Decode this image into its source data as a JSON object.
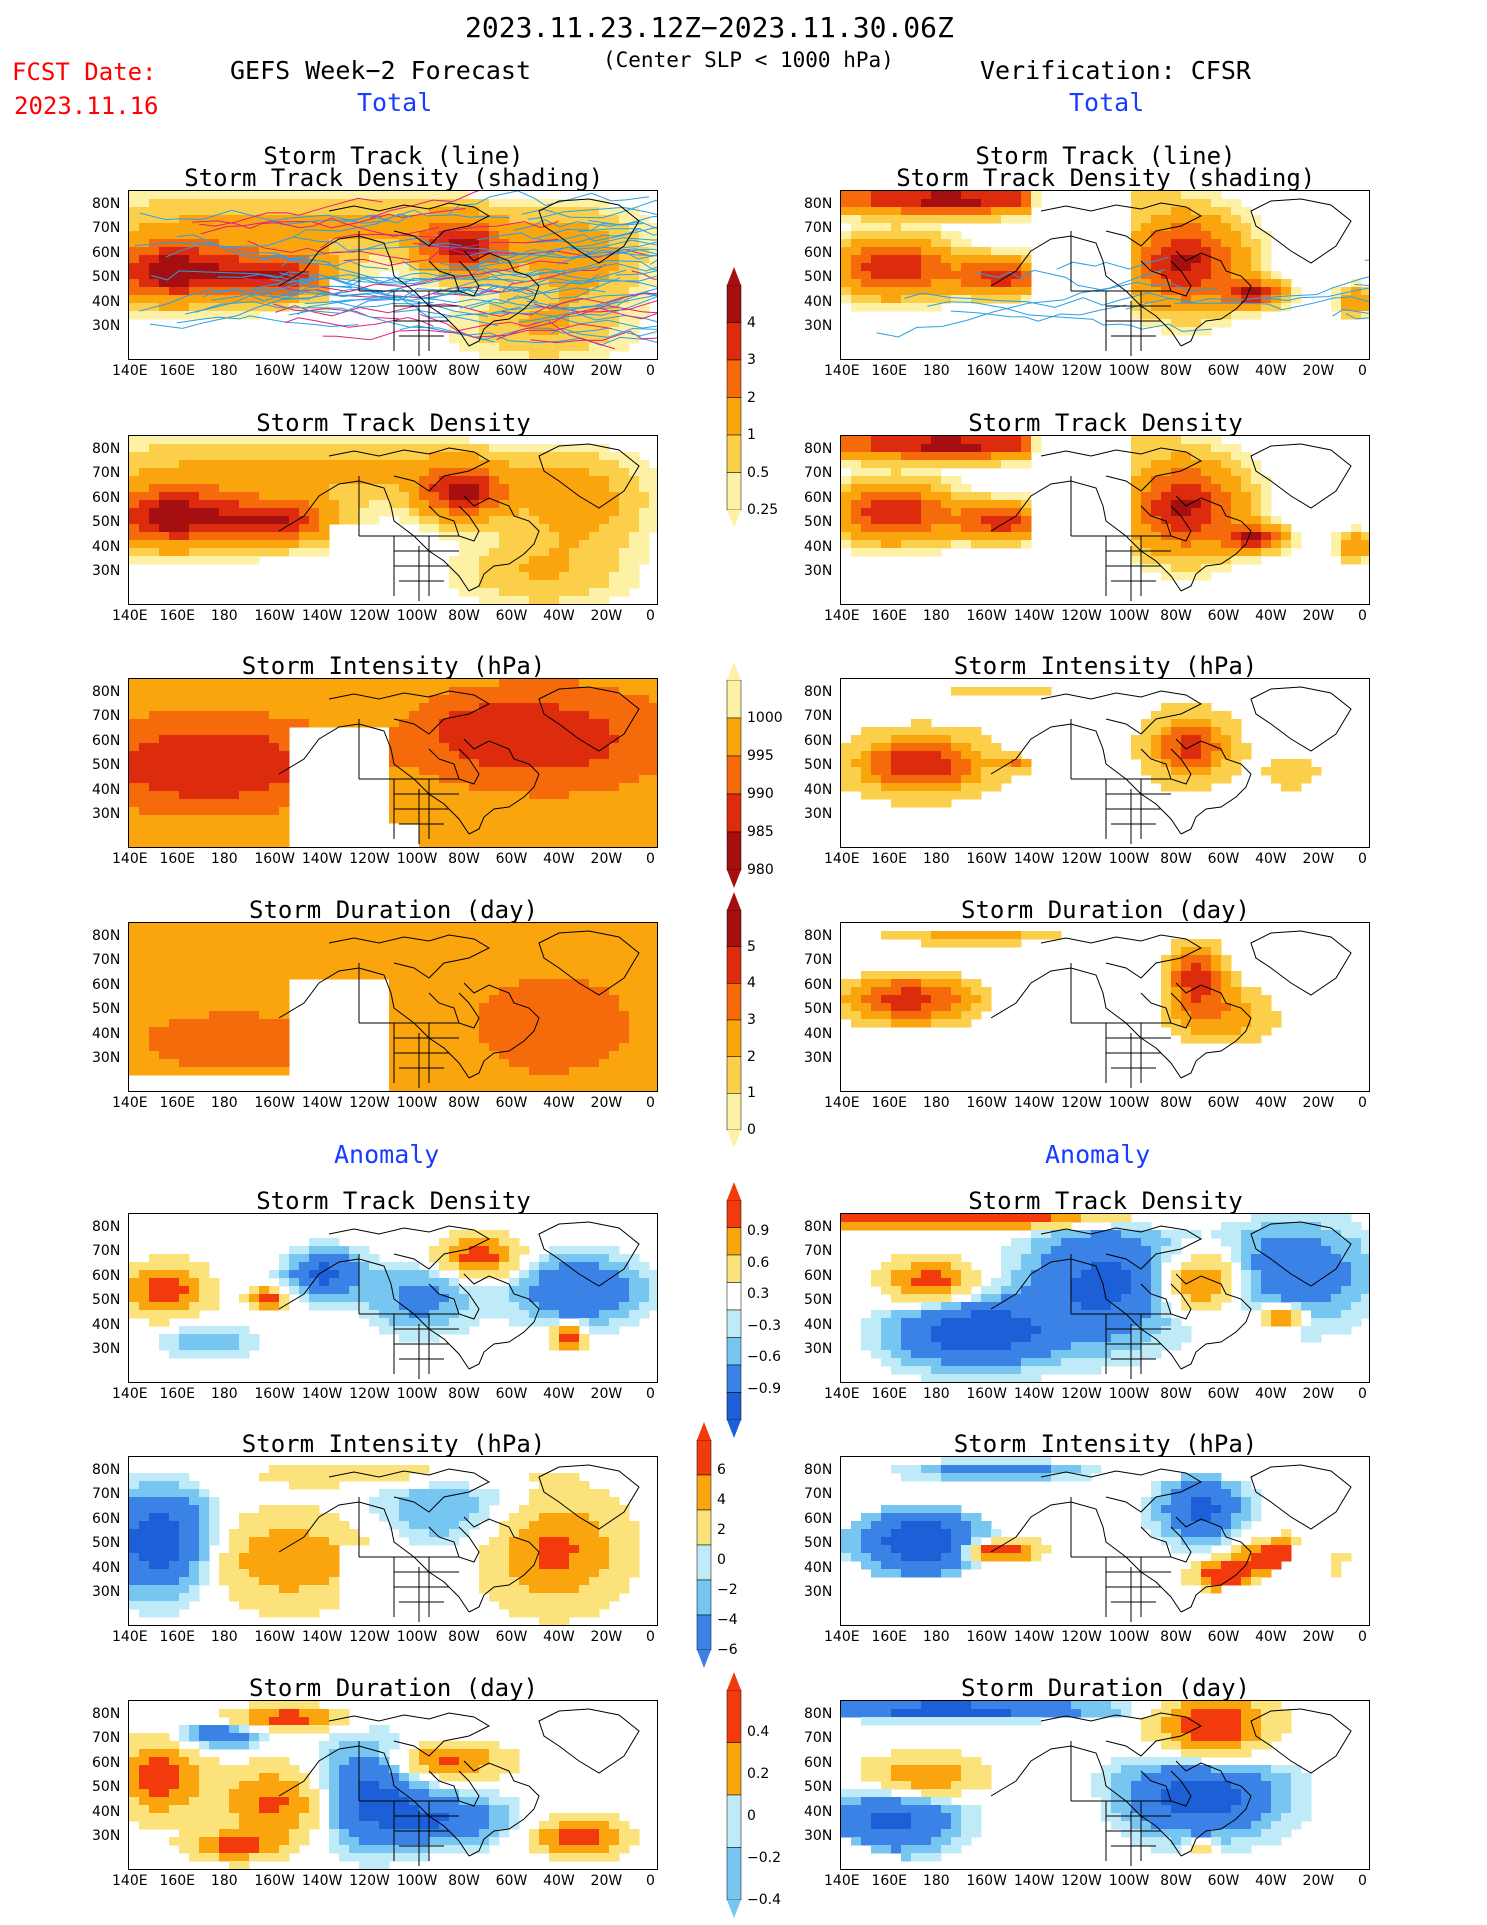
{
  "header": {
    "date_range": "2023.11.23.12Z−2023.11.30.06Z",
    "criterion": "(Center SLP < 1000 hPa)",
    "fcst_label": "FCST Date:",
    "fcst_date": "2023.11.16",
    "left_title": "GEFS Week−2 Forecast",
    "right_title": "Verification: CFSR",
    "total_left": "Total",
    "total_right": "Total",
    "anomaly_left": "Anomaly",
    "anomaly_right": "Anomaly"
  },
  "panel_titles": {
    "track_line": "Storm Track (line)",
    "track_shading": "Storm Track Density (shading)",
    "density": "Storm Track Density",
    "intensity": "Storm Intensity (hPa)",
    "duration": "Storm Duration (day)"
  },
  "chart_data": {
    "type": "heatmap",
    "x_ticks": [
      "140E",
      "160E",
      "180",
      "160W",
      "140W",
      "120W",
      "100W",
      "80W",
      "60W",
      "40W",
      "20W",
      "0"
    ],
    "y_ticks": [
      "80N",
      "70N",
      "60N",
      "50N",
      "40N",
      "30N"
    ],
    "colorbars": [
      {
        "name": "density",
        "labels": [
          "4",
          "3",
          "2",
          "1",
          "0.5",
          "0.25"
        ],
        "colors": [
          "#a50f0f",
          "#dd2b0d",
          "#f56a0a",
          "#faa50e",
          "#fbcf4a",
          "#fdf1a6"
        ]
      },
      {
        "name": "intensity",
        "labels": [
          "1000",
          "995",
          "990",
          "985",
          "980"
        ],
        "colors": [
          "#fdf1a6",
          "#faa50e",
          "#f56a0a",
          "#dd2b0d",
          "#a50f0f"
        ]
      },
      {
        "name": "duration",
        "labels": [
          "5",
          "4",
          "3",
          "2",
          "1",
          "0"
        ],
        "colors": [
          "#a50f0f",
          "#dd2b0d",
          "#f56a0a",
          "#faa50e",
          "#fbcf4a",
          "#fdf1a6"
        ]
      },
      {
        "name": "density_anom",
        "labels": [
          "0.9",
          "0.6",
          "0.3",
          "−0.3",
          "−0.6",
          "−0.9"
        ],
        "colors": [
          "#f23a0c",
          "#faa50e",
          "#fbe27a",
          "#ffffff",
          "#bfeaf7",
          "#77c6f2",
          "#3b82e6",
          "#1d5fd6"
        ]
      },
      {
        "name": "intensity_anom",
        "labels": [
          "6",
          "4",
          "2",
          "0",
          "−2",
          "−4",
          "−6"
        ],
        "colors": [
          "#f23a0c",
          "#faa50e",
          "#fbe27a",
          "#bfeaf7",
          "#77c6f2",
          "#3b82e6"
        ]
      },
      {
        "name": "duration_anom",
        "labels": [
          "0.4",
          "0.2",
          "0",
          "−0.2",
          "−0.4"
        ],
        "colors": [
          "#f23a0c",
          "#faa50e",
          "#bfeaf7",
          "#77c6f2"
        ]
      }
    ]
  }
}
